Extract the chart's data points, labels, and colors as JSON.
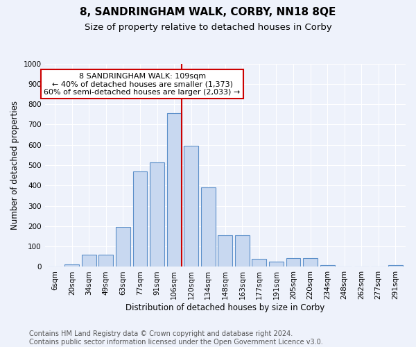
{
  "title": "8, SANDRINGHAM WALK, CORBY, NN18 8QE",
  "subtitle": "Size of property relative to detached houses in Corby",
  "xlabel": "Distribution of detached houses by size in Corby",
  "ylabel": "Number of detached properties",
  "categories": [
    "6sqm",
    "20sqm",
    "34sqm",
    "49sqm",
    "63sqm",
    "77sqm",
    "91sqm",
    "106sqm",
    "120sqm",
    "134sqm",
    "148sqm",
    "163sqm",
    "177sqm",
    "191sqm",
    "205sqm",
    "220sqm",
    "234sqm",
    "248sqm",
    "262sqm",
    "277sqm",
    "291sqm"
  ],
  "values": [
    0,
    12,
    60,
    60,
    195,
    470,
    515,
    755,
    595,
    390,
    155,
    155,
    40,
    25,
    42,
    42,
    8,
    2,
    0,
    0,
    8
  ],
  "bar_color": "#c8d8f0",
  "bar_edge_color": "#5b8fc9",
  "vline_bin": 7,
  "vline_color": "#cc0000",
  "annotation_text": "8 SANDRINGHAM WALK: 109sqm\n← 40% of detached houses are smaller (1,373)\n60% of semi-detached houses are larger (2,033) →",
  "annotation_box_color": "#ffffff",
  "annotation_box_edge": "#cc0000",
  "ylim": [
    0,
    1000
  ],
  "yticks": [
    0,
    100,
    200,
    300,
    400,
    500,
    600,
    700,
    800,
    900,
    1000
  ],
  "footer": "Contains HM Land Registry data © Crown copyright and database right 2024.\nContains public sector information licensed under the Open Government Licence v3.0.",
  "bg_color": "#eef2fb",
  "plot_bg_color": "#eef2fb",
  "grid_color": "#ffffff",
  "title_fontsize": 11,
  "subtitle_fontsize": 9.5,
  "axis_label_fontsize": 8.5,
  "tick_fontsize": 7.5,
  "footer_fontsize": 7,
  "annotation_fontsize": 8
}
